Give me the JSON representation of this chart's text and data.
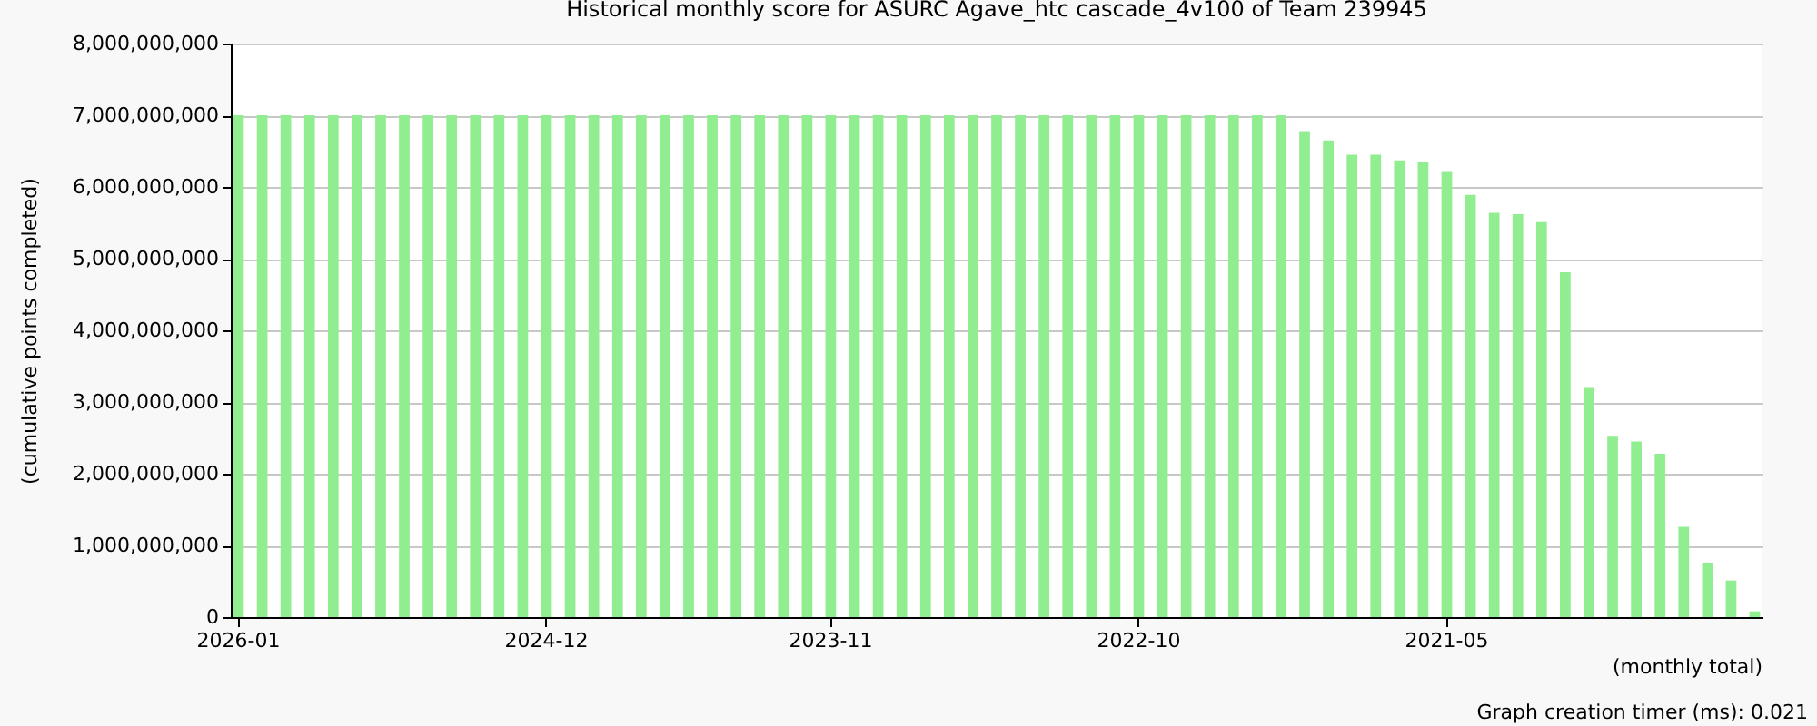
{
  "chart_data": {
    "type": "bar",
    "title": "Historical monthly score for ASURC Agave_htc cascade_4v100 of Team 239945",
    "categories": [
      "2026-01",
      null,
      null,
      null,
      null,
      null,
      null,
      null,
      null,
      null,
      null,
      null,
      null,
      "2024-12",
      null,
      null,
      null,
      null,
      null,
      null,
      null,
      null,
      null,
      null,
      null,
      "2023-11",
      null,
      null,
      null,
      null,
      null,
      null,
      null,
      null,
      null,
      null,
      null,
      null,
      "2022-10",
      null,
      null,
      null,
      null,
      null,
      null,
      null,
      null,
      null,
      null,
      null,
      null,
      "2021-05",
      null,
      null,
      null,
      null,
      null,
      null,
      null,
      null,
      null,
      null,
      null,
      null,
      null
    ],
    "values": [
      7000000000.0,
      7000000000.0,
      7000000000.0,
      7000000000.0,
      7000000000.0,
      7000000000.0,
      7000000000.0,
      7000000000.0,
      7000000000.0,
      7000000000.0,
      7000000000.0,
      7000000000.0,
      7000000000.0,
      7000000000.0,
      7000000000.0,
      7000000000.0,
      7000000000.0,
      7000000000.0,
      7000000000.0,
      7000000000.0,
      7000000000.0,
      7000000000.0,
      7000000000.0,
      7000000000.0,
      7000000000.0,
      7000000000.0,
      7000000000.0,
      7000000000.0,
      7000000000.0,
      7000000000.0,
      7000000000.0,
      7000000000.0,
      7000000000.0,
      7000000000.0,
      7000000000.0,
      7000000000.0,
      7000000000.0,
      7000000000.0,
      7000000000.0,
      7000000000.0,
      7000000000.0,
      7000000000.0,
      7000000000.0,
      7000000000.0,
      7000000000.0,
      6780000000.0,
      6650000000.0,
      6450000000.0,
      6450000000.0,
      6370000000.0,
      6350000000.0,
      6220000000.0,
      5890000000.0,
      5640000000.0,
      5620000000.0,
      5510000000.0,
      4810000000.0,
      3210000000.0,
      2530000000.0,
      2450000000.0,
      2280000000.0,
      1260000000.0,
      760000000.0,
      510000000.0,
      80000000.0
    ],
    "color": "#90ee90",
    "ylim": [
      0,
      8000000000
    ],
    "yticks": [
      0,
      {
        "value": 1000000000,
        "label": "1,000,000,000"
      },
      {
        "value": 2000000000,
        "label": "2,000,000,000"
      },
      {
        "value": 3000000000,
        "label": "3,000,000,000"
      },
      {
        "value": 4000000000,
        "label": "4,000,000,000"
      },
      {
        "value": 5000000000,
        "label": "5,000,000,000"
      },
      {
        "value": 6000000000,
        "label": "6,000,000,000"
      },
      {
        "value": 7000000000,
        "label": "7,000,000,000"
      },
      {
        "value": 8000000000,
        "label": "8,000,000,000"
      }
    ],
    "ylabel": "(cumulative points completed)",
    "xlabel": "(monthly total)",
    "grid": "y",
    "annotations": [
      "Graph creation timer (ms): 0.021"
    ]
  }
}
